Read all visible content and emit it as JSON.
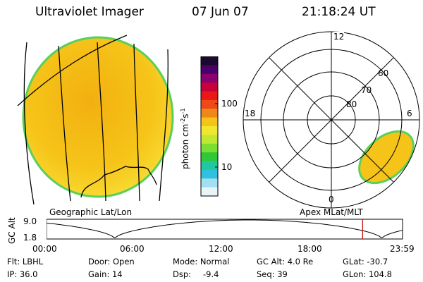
{
  "header": {
    "instrument": "Ultraviolet Imager",
    "date": "07 Jun 07",
    "time": "21:18:24 UT"
  },
  "colors": {
    "disk_fill": "#f6c419",
    "disk_edge": "#58d05a",
    "grid_line": "#000000",
    "time_marker": "#c00000"
  },
  "geo_panel": {
    "label": "Geographic Lat/Lon"
  },
  "polar_panel": {
    "label": "Apex MLat/MLT",
    "mlt_labels": {
      "top": "12",
      "left": "18",
      "right": "6",
      "bottom": "0"
    },
    "lat_labels": [
      "60",
      "70",
      "80"
    ]
  },
  "colorbar": {
    "unit_label": "photon cm",
    "unit_exp1": "-2",
    "unit_mid": "s",
    "unit_exp2": "-1",
    "ticks": [
      "100",
      "10"
    ],
    "colors": [
      "#1a0a30",
      "#4a0068",
      "#8a0070",
      "#c8003a",
      "#e81818",
      "#f04818",
      "#f08818",
      "#f6c419",
      "#f0e830",
      "#bfe830",
      "#7cde30",
      "#30c838",
      "#20c8a0",
      "#30c0e0",
      "#a0e0f0",
      "#e8f4f8"
    ]
  },
  "altitude_plot": {
    "ylabel": "GC Alt",
    "y_ticks": [
      "9.0",
      "1.8"
    ],
    "x_ticks": [
      "00:00",
      "06:00",
      "12:00",
      "18:00",
      "23:59"
    ],
    "y_range": [
      1.8,
      9.0
    ],
    "x_range_hours": [
      0,
      24
    ],
    "current_time_hours": 21.307,
    "orbit_minima_hours": [
      4.6,
      22.6
    ],
    "orbit_period_hours": 18.0
  },
  "footer": {
    "filter": "Flt: LBHL",
    "ip": "IP: 36.0",
    "door": "Door: Open",
    "gain": "Gain: 14",
    "mode": "Mode: Normal",
    "dsp_label": "Dsp:",
    "dsp_value": "-9.4",
    "gc_alt": "GC Alt: 4.0 Re",
    "seq": "Seq: 39",
    "glat": "GLat: -30.7",
    "glon": "GLon: 104.8"
  }
}
